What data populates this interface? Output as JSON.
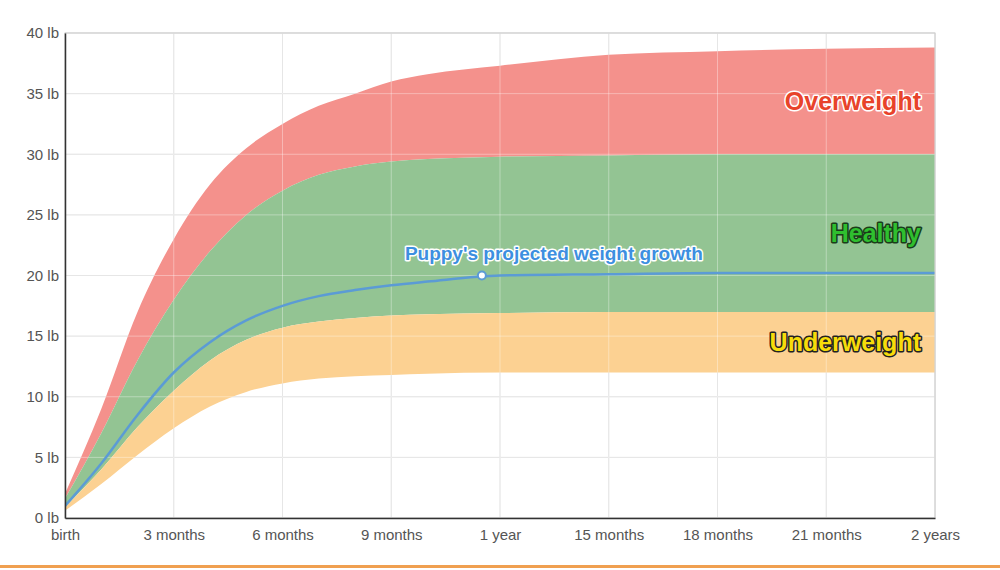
{
  "chart_data": {
    "type": "line",
    "x": [
      0,
      1,
      2,
      3,
      4,
      5,
      6,
      7,
      8,
      9,
      10,
      12,
      15,
      18,
      21,
      24
    ],
    "xlim": [
      0,
      24
    ],
    "xticks": [
      {
        "value": 0,
        "label": "birth"
      },
      {
        "value": 3,
        "label": "3 months"
      },
      {
        "value": 6,
        "label": "6 months"
      },
      {
        "value": 9,
        "label": "9 months"
      },
      {
        "value": 12,
        "label": "1 year"
      },
      {
        "value": 15,
        "label": "15 months"
      },
      {
        "value": 18,
        "label": "18 months"
      },
      {
        "value": 21,
        "label": "21 months"
      },
      {
        "value": 24,
        "label": "2 years"
      }
    ],
    "ylim": [
      0,
      40
    ],
    "yticks": [
      {
        "value": 0,
        "label": "0 lb"
      },
      {
        "value": 5,
        "label": "5 lb"
      },
      {
        "value": 10,
        "label": "10 lb"
      },
      {
        "value": 15,
        "label": "15 lb"
      },
      {
        "value": 20,
        "label": "20 lb"
      },
      {
        "value": 25,
        "label": "25 lb"
      },
      {
        "value": 30,
        "label": "30 lb"
      },
      {
        "value": 35,
        "label": "35 lb"
      },
      {
        "value": 40,
        "label": "40 lb"
      }
    ],
    "grid": true,
    "series": [
      {
        "name": "Overweight",
        "type": "band",
        "color": "#f4918c",
        "low": [
          1.6,
          7,
          13,
          18,
          22,
          25,
          27,
          28.3,
          29,
          29.4,
          29.6,
          29.8,
          29.9,
          30,
          30,
          30
        ],
        "values": [
          2,
          9,
          17,
          23,
          27.5,
          30.5,
          32.5,
          34,
          35,
          36,
          36.6,
          37.3,
          38.2,
          38.5,
          38.7,
          38.8
        ]
      },
      {
        "name": "Healthy",
        "type": "band",
        "color": "#93c493",
        "low": [
          0.9,
          4,
          7.5,
          10.5,
          13,
          14.7,
          15.7,
          16.2,
          16.5,
          16.7,
          16.8,
          16.9,
          17,
          17,
          17,
          17
        ],
        "values": [
          1.6,
          7,
          13,
          18,
          22,
          25,
          27,
          28.3,
          29,
          29.4,
          29.6,
          29.8,
          29.9,
          30,
          30,
          30
        ]
      },
      {
        "name": "Underweight",
        "type": "band",
        "color": "#fcd192",
        "low": [
          0.6,
          2.8,
          5.2,
          7.4,
          9.2,
          10.4,
          11.1,
          11.5,
          11.7,
          11.8,
          11.9,
          12,
          12,
          12,
          12,
          12
        ],
        "values": [
          0.9,
          4,
          7.5,
          10.5,
          13,
          14.7,
          15.7,
          16.2,
          16.5,
          16.7,
          16.8,
          16.9,
          17,
          17,
          17,
          17
        ]
      },
      {
        "name": "Puppy's projected weight growth",
        "type": "line",
        "color": "#5b9bd5",
        "values": [
          1.0,
          4.5,
          8.5,
          12.0,
          14.5,
          16.3,
          17.5,
          18.3,
          18.8,
          19.2,
          19.5,
          20.0,
          20.1,
          20.2,
          20.2,
          20.2
        ]
      },
      {
        "type": "scatter",
        "marker": "circle",
        "color": "#5b9bd5",
        "x": [
          11.5
        ],
        "values": [
          20
        ]
      }
    ]
  }
}
